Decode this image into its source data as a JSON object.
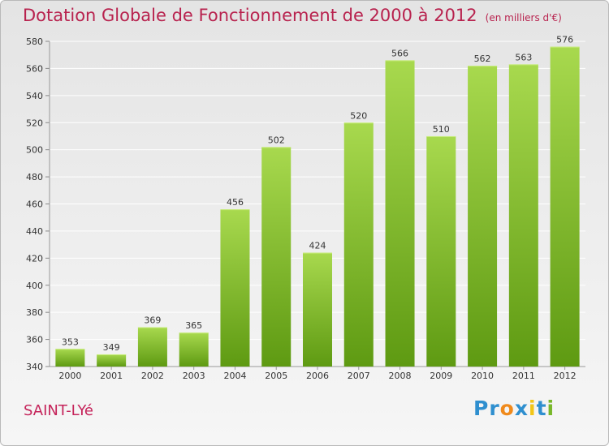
{
  "page": {
    "title": "Dotation Globale de Fonctionnement de 2000 à 2012",
    "subtitle": "(en milliers d'€)",
    "commune": "SAINT-LYé",
    "logo": "Proxiti"
  },
  "colors": {
    "title": "#b8224e",
    "bar_light": "#a8d94e",
    "bar_dark": "#5e9a12",
    "logo_letters": [
      "#2f8fcf",
      "#2f8fcf",
      "#f08a1c",
      "#2f8fcf",
      "#f2c618",
      "#2f8fcf",
      "#78b82a"
    ]
  },
  "chart_data": {
    "type": "bar",
    "title": "Dotation Globale de Fonctionnement de 2000 à 2012",
    "subtitle": "(en milliers d'€)",
    "categories": [
      "2000",
      "2001",
      "2002",
      "2003",
      "2004",
      "2005",
      "2006",
      "2007",
      "2008",
      "2009",
      "2010",
      "2011",
      "2012"
    ],
    "values": [
      353,
      349,
      369,
      365,
      456,
      502,
      424,
      520,
      566,
      510,
      562,
      563,
      576
    ],
    "ylim": [
      340,
      580
    ],
    "yticks": [
      340,
      360,
      380,
      400,
      420,
      440,
      460,
      480,
      500,
      520,
      540,
      560,
      580
    ],
    "grid": true,
    "xlabel": "",
    "ylabel": ""
  }
}
